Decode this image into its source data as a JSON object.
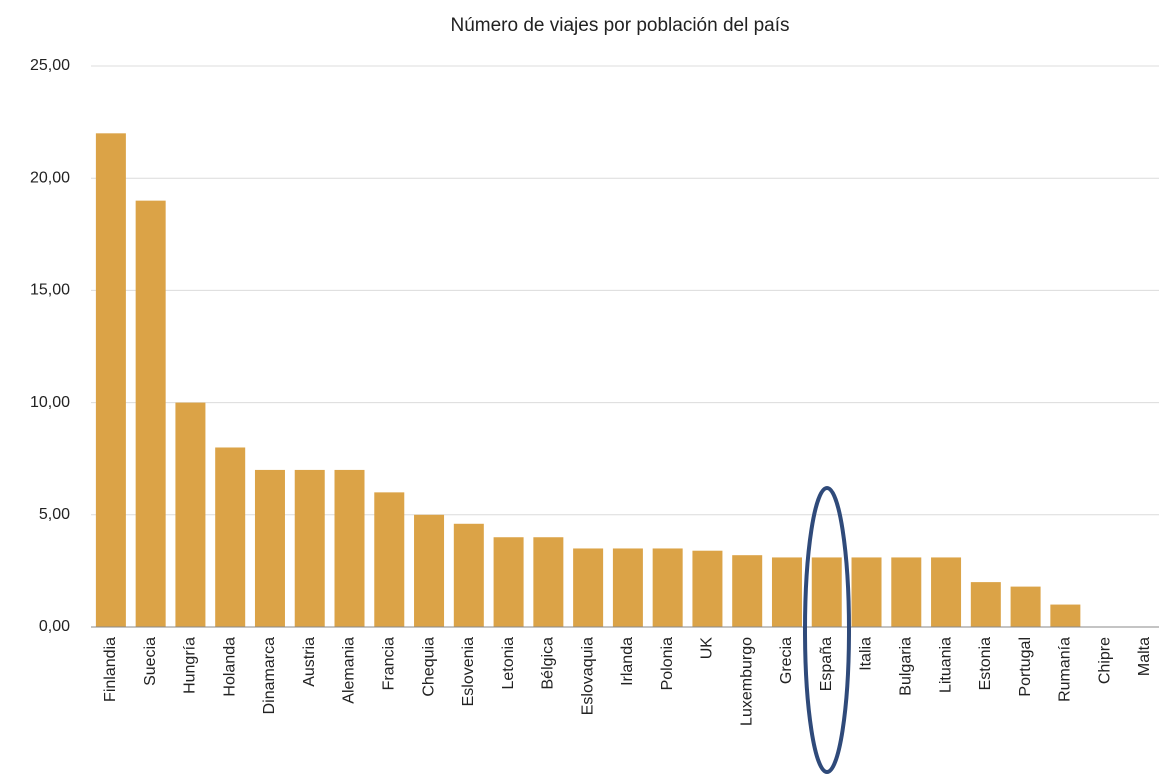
{
  "chart_data": {
    "type": "bar",
    "title": "Número de viajes por población del país",
    "categories": [
      "Finlandia",
      "Suecia",
      "Hungría",
      "Holanda",
      "Dinamarca",
      "Austria",
      "Alemania",
      "Francia",
      "Chequia",
      "Eslovenia",
      "Letonia",
      "Bélgica",
      "Eslovaquia",
      "Irlanda",
      "Polonia",
      "UK",
      "Luxemburgo",
      "Grecia",
      "España",
      "Italia",
      "Bulgaria",
      "Lituania",
      "Estonia",
      "Portugal",
      "Rumanía",
      "Chipre",
      "Malta"
    ],
    "values": [
      22,
      19,
      10,
      8,
      7,
      7,
      7,
      6,
      5,
      4.6,
      4,
      4,
      3.5,
      3.5,
      3.5,
      3.4,
      3.2,
      3.1,
      3.1,
      3.1,
      3.1,
      3.1,
      2,
      1.8,
      1,
      0,
      0
    ],
    "color": "#dba347",
    "ylim": [
      0,
      25
    ],
    "yticks": [
      {
        "value": 0,
        "label": "0,00"
      },
      {
        "value": 5,
        "label": "5,00"
      },
      {
        "value": 10,
        "label": "10,00"
      },
      {
        "value": 15,
        "label": "15,00"
      },
      {
        "value": 20,
        "label": "20,00"
      },
      {
        "value": 25,
        "label": "25,00"
      }
    ],
    "grid": true
  }
}
